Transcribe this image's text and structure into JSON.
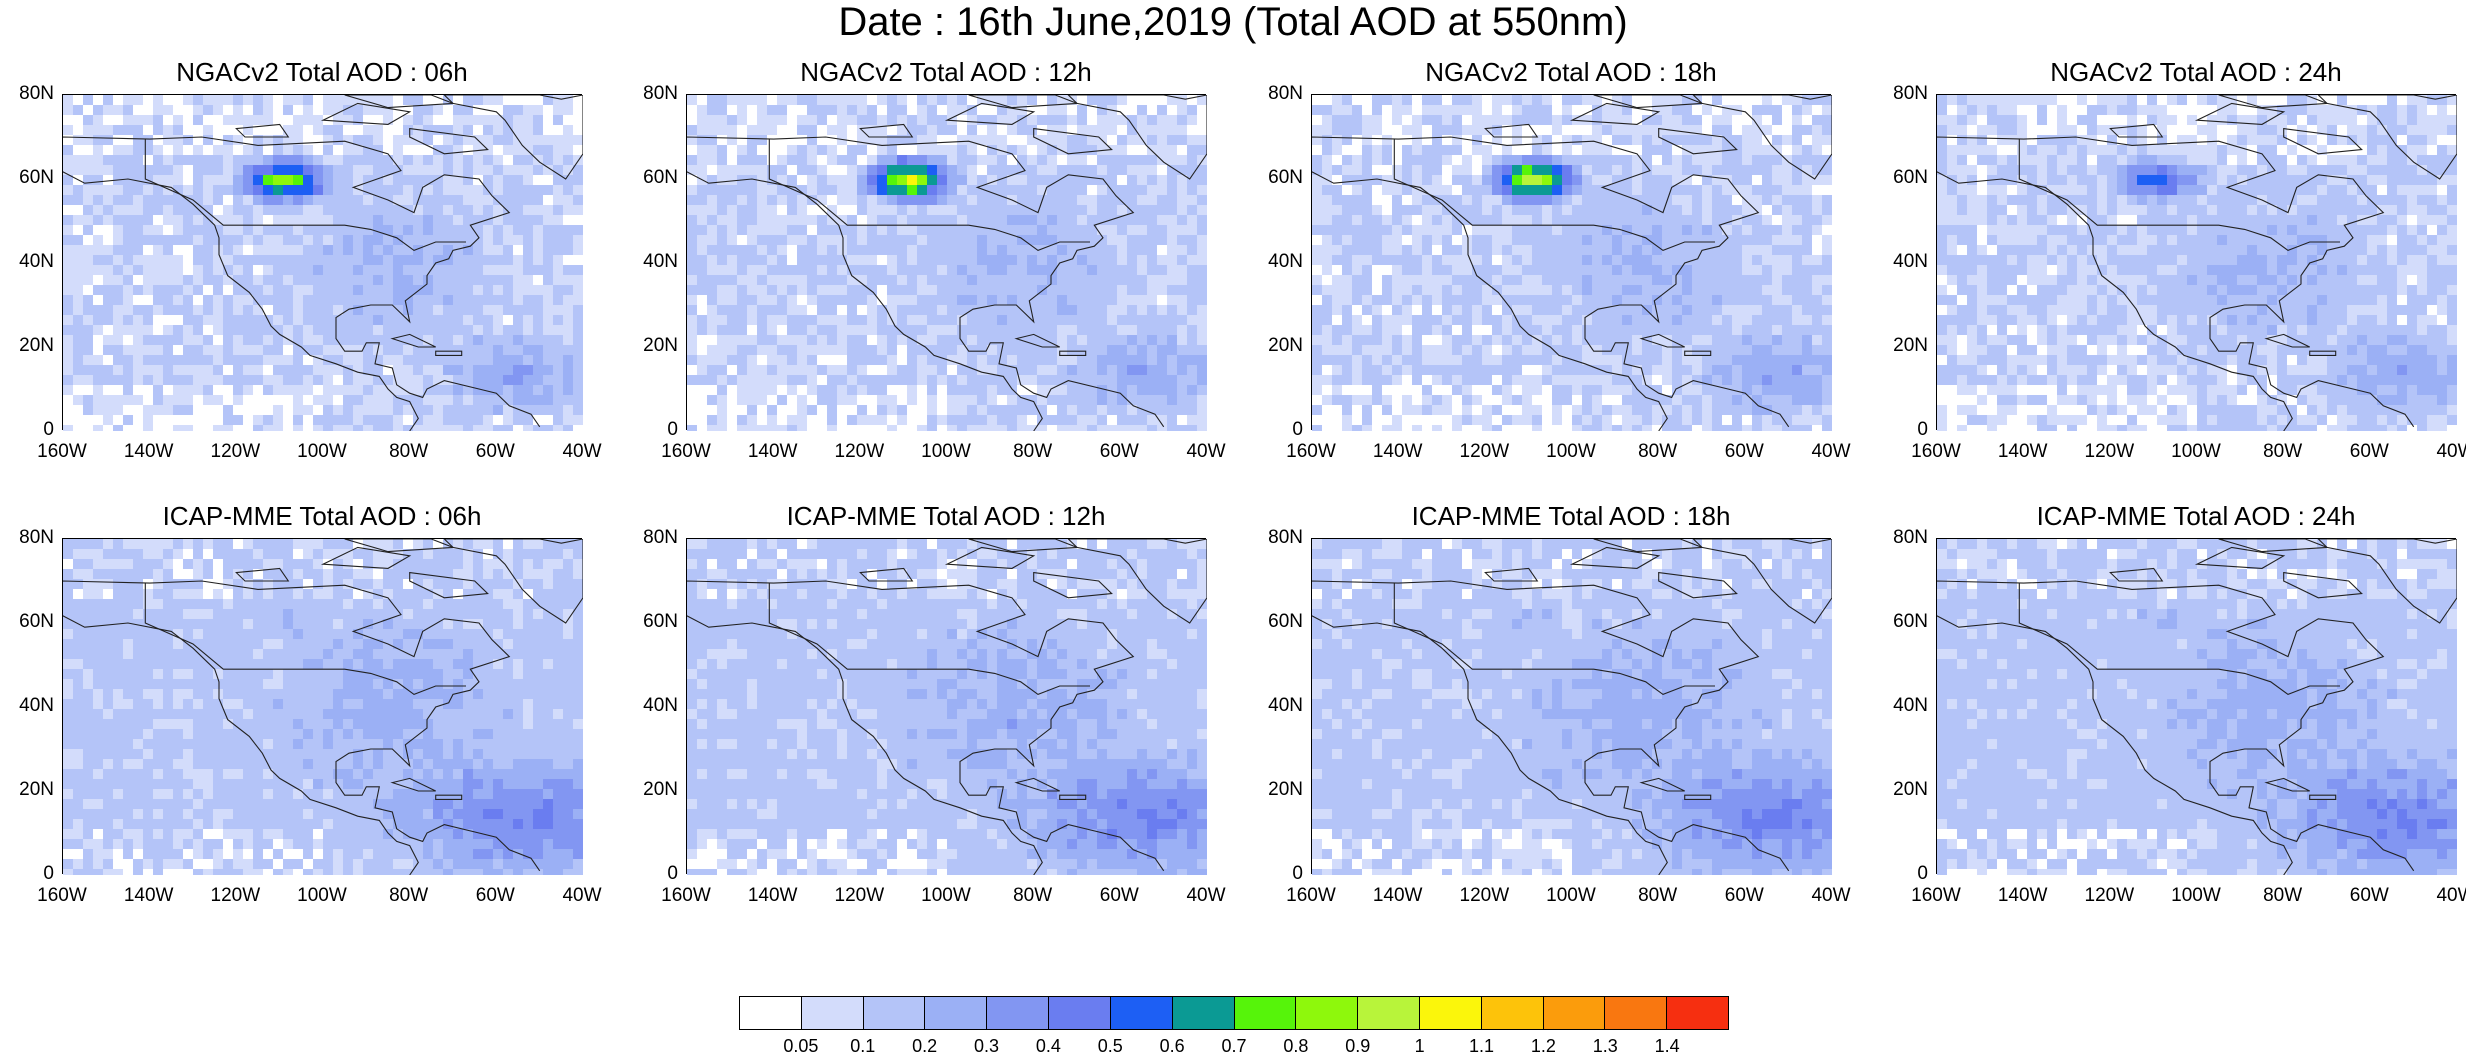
{
  "main_title": "Date : 16th June,2019 (Total AOD at 550nm)",
  "lat_ticks": [
    "80N",
    "60N",
    "40N",
    "20N",
    "0"
  ],
  "lon_ticks": [
    "160W",
    "140W",
    "120W",
    "100W",
    "80W",
    "60W",
    "40W"
  ],
  "panels": [
    {
      "title": "NGACv2 Total AOD : 06h",
      "hotspot_value": 0.8
    },
    {
      "title": "NGACv2 Total AOD : 12h",
      "hotspot_value": 0.9
    },
    {
      "title": "NGACv2 Total AOD : 18h",
      "hotspot_value": 0.9
    },
    {
      "title": "NGACv2 Total AOD : 24h",
      "hotspot_value": 0.5
    },
    {
      "title": "ICAP-MME Total AOD : 06h",
      "hotspot_value": 0.5
    },
    {
      "title": "ICAP-MME Total AOD : 12h",
      "hotspot_value": 0.5
    },
    {
      "title": "ICAP-MME Total AOD : 18h",
      "hotspot_value": 0.5
    },
    {
      "title": "ICAP-MME Total AOD : 24h",
      "hotspot_value": 0.5
    }
  ],
  "colorbar": {
    "labels": [
      "0.05",
      "0.1",
      "0.2",
      "0.3",
      "0.4",
      "0.5",
      "0.6",
      "0.7",
      "0.8",
      "0.9",
      "1",
      "1.1",
      "1.2",
      "1.3",
      "1.4"
    ],
    "colors": [
      "#ffffff",
      "#d3dcfb",
      "#b4c4f8",
      "#9bb0f5",
      "#8296f2",
      "#6a7df0",
      "#1d5ff4",
      "#0b9a94",
      "#56f40a",
      "#8ef80c",
      "#b8f43a",
      "#fbf60b",
      "#fdc30a",
      "#fb9c0c",
      "#f97710",
      "#f62f10"
    ]
  }
}
